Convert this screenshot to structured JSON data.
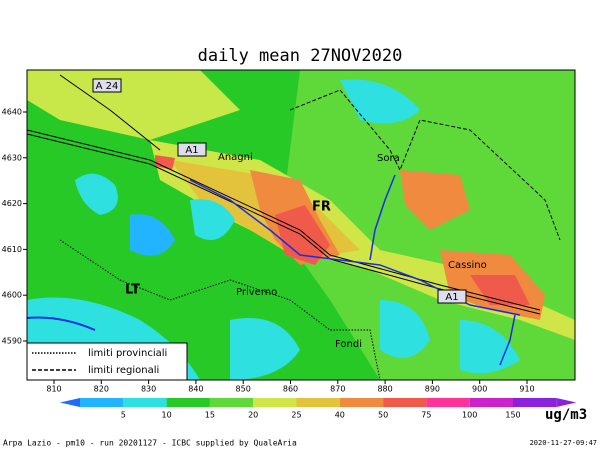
{
  "title": "daily mean 27NOV2020",
  "map": {
    "x_ticks": [
      810,
      820,
      830,
      840,
      850,
      860,
      870,
      880,
      890,
      900,
      910
    ],
    "y_ticks": [
      4640,
      4630,
      4620,
      4610,
      4600,
      4590
    ],
    "road_labels": [
      "A 24",
      "A1",
      "A1"
    ],
    "place_labels": [
      "Anagni",
      "Sora",
      "FR",
      "Cassino",
      "LT",
      "Priverno",
      "Fondi"
    ],
    "legend": [
      "limiti provinciali",
      "limiti regionali"
    ]
  },
  "colorbar": {
    "labels": [
      5,
      10,
      15,
      20,
      25,
      40,
      50,
      75,
      100,
      150
    ],
    "unit": "ug/m3"
  },
  "footer": {
    "left": "Arpa Lazio - pm10 - run 20201127 - ICBC supplied by QualeAria",
    "right": "2020-11-27-09:47"
  }
}
